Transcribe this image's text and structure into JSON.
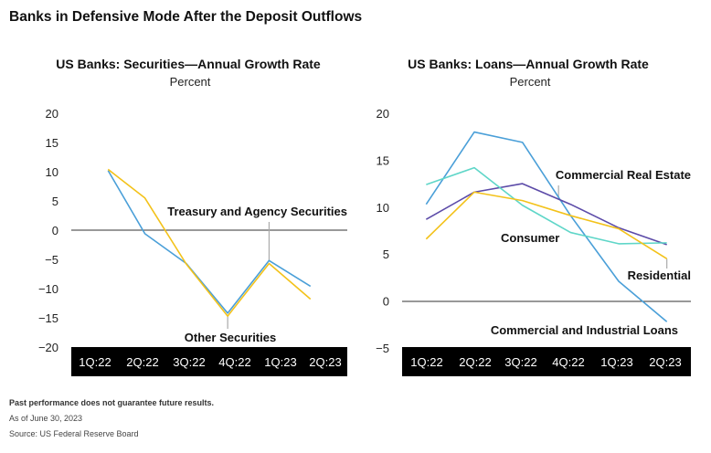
{
  "title": "Banks in Defensive Mode After the Deposit Outflows",
  "footer": {
    "note": "Past performance does not guarantee future results.",
    "date": "As of June 30, 2023",
    "source": "Source: US Federal Reserve Board"
  },
  "colors": {
    "blue": "#4a9fd8",
    "yellow": "#f3c21a",
    "teal": "#5fd6c8",
    "purple": "#5c4ba8"
  },
  "chart_data": [
    {
      "type": "line",
      "title": "US Banks: Securities—Annual Growth Rate",
      "subtitle": "Percent",
      "categories": [
        "1Q:22",
        "2Q:22",
        "3Q:22",
        "4Q:22",
        "1Q:23",
        "2Q:23"
      ],
      "yticks": [
        20,
        15,
        10,
        5,
        0,
        -5,
        -10,
        -15,
        -20
      ],
      "ylim": [
        -20,
        20
      ],
      "x_start": 0.8,
      "series": [
        {
          "name": "Treasury and Agency Securities",
          "color": "#4a9fd8",
          "x": [
            0.8,
            1.6,
            2.5,
            3.4,
            4.3,
            5.2
          ],
          "values": [
            10.2,
            -0.6,
            -5.7,
            -14.2,
            -5.2,
            -9.6
          ]
        },
        {
          "name": "Other Securities",
          "color": "#f3c21a",
          "x": [
            0.8,
            1.6,
            2.5,
            3.4,
            4.3,
            5.2
          ],
          "values": [
            10.4,
            5.5,
            -5.8,
            -14.7,
            -5.7,
            -11.8
          ]
        }
      ],
      "annotations": [
        {
          "label": "Treasury and Agency Securities",
          "series": 0
        },
        {
          "label": "Other Securities",
          "series": 1
        }
      ]
    },
    {
      "type": "line",
      "title": "US Banks: Loans—Annual Growth Rate",
      "subtitle": "Percent",
      "categories": [
        "1Q:22",
        "2Q:22",
        "3Q:22",
        "4Q:22",
        "1Q:23",
        "2Q:23"
      ],
      "yticks": [
        20,
        15,
        10,
        5,
        0,
        -5
      ],
      "ylim": [
        -5,
        20
      ],
      "series": [
        {
          "name": "Commercial and Industrial Loans",
          "color": "#4a9fd8",
          "x": [
            0.5,
            1.5,
            2.5,
            3.5,
            4.5,
            5.5
          ],
          "values": [
            10.3,
            18,
            16.9,
            9.1,
            2.1,
            -2.2
          ]
        },
        {
          "name": "Commercial Real Estate",
          "color": "#5c4ba8",
          "x": [
            0.5,
            1.5,
            2.5,
            3.5,
            4.5,
            5.5
          ],
          "values": [
            8.7,
            11.6,
            12.5,
            10.3,
            7.8,
            6.0
          ]
        },
        {
          "name": "Consumer",
          "color": "#5fd6c8",
          "x": [
            0.5,
            1.5,
            2.5,
            3.5,
            4.5,
            5.5
          ],
          "values": [
            12.4,
            14.2,
            10.2,
            7.3,
            6.1,
            6.2
          ]
        },
        {
          "name": "Residential",
          "color": "#f3c21a",
          "x": [
            0.5,
            1.5,
            2.5,
            3.5,
            4.5,
            5.5
          ],
          "values": [
            6.6,
            11.6,
            10.7,
            9.1,
            7.7,
            4.5
          ]
        }
      ],
      "annotations": [
        {
          "label": "Commercial Real Estate",
          "series": 1
        },
        {
          "label": "Consumer",
          "series": 2
        },
        {
          "label": "Residential",
          "series": 3
        },
        {
          "label": "Commercial and Industrial Loans",
          "series": 0
        }
      ]
    }
  ]
}
